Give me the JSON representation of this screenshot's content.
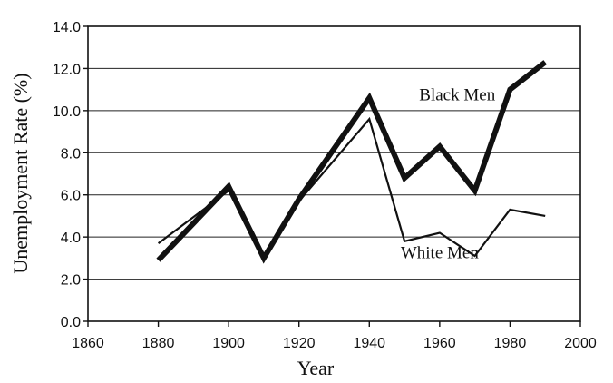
{
  "chart_data": {
    "type": "line",
    "title": "",
    "xlabel": "Year",
    "ylabel": "Unemployment Rate (%)",
    "xlim": [
      1860,
      2000
    ],
    "ylim": [
      0,
      14
    ],
    "xticks": [
      1860,
      1880,
      1900,
      1920,
      1940,
      1960,
      1980,
      2000
    ],
    "yticks": [
      0,
      2,
      4,
      6,
      8,
      10,
      12,
      14
    ],
    "xtick_labels": [
      "1860",
      "1880",
      "1900",
      "1920",
      "1940",
      "1960",
      "1980",
      "2000"
    ],
    "ytick_labels": [
      "0.0",
      "2.0",
      "4.0",
      "6.0",
      "8.0",
      "10.0",
      "12.0",
      "14.0"
    ],
    "grid": "horizontal",
    "legend": "none",
    "series": [
      {
        "name": "Black Men",
        "color": "#111111",
        "x": [
          1880,
          1900,
          1910,
          1920,
          1940,
          1950,
          1960,
          1970,
          1980,
          1990
        ],
        "values": [
          2.9,
          6.4,
          3.0,
          5.8,
          10.6,
          6.8,
          8.3,
          6.2,
          11.0,
          12.3
        ]
      },
      {
        "name": "White Men",
        "color": "#111111",
        "x": [
          1880,
          1900,
          1910,
          1920,
          1940,
          1950,
          1960,
          1970,
          1980,
          1990
        ],
        "values": [
          3.7,
          6.2,
          3.1,
          5.7,
          9.6,
          3.8,
          4.2,
          3.1,
          5.3,
          5.0
        ]
      }
    ],
    "annotations": [
      {
        "text": "Black Men",
        "series": "Black Men",
        "x": 1965,
        "y": 10.5
      },
      {
        "text": "White Men",
        "series": "White Men",
        "x": 1960,
        "y": 3.0
      }
    ]
  }
}
